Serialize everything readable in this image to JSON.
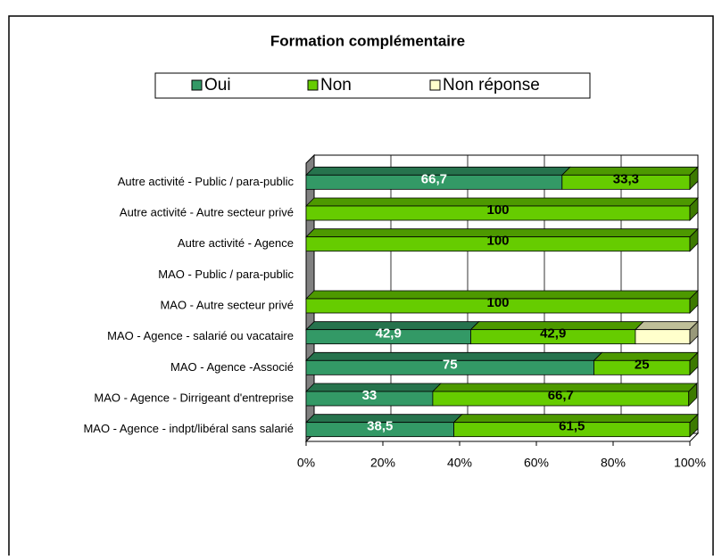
{
  "chart_data": {
    "type": "stacked-bar-horizontal-100",
    "title": "Formation complémentaire",
    "categories": [
      "Autre activité - Public / para-public",
      "Autre activité - Autre secteur privé",
      "Autre activité - Agence",
      "MAO - Public / para-public",
      "MAO - Autre secteur privé",
      "MAO - Agence - salarié ou vacataire",
      "MAO - Agence -Associé",
      "MAO - Agence - Dirrigeant d'entreprise",
      "MAO - Agence - indpt/libéral sans salarié"
    ],
    "series": [
      {
        "name": "Oui",
        "color": "#339966",
        "values": [
          66.7,
          0,
          0,
          null,
          0,
          42.9,
          75,
          33,
          38.5
        ],
        "value_labels": [
          "66,7",
          null,
          null,
          null,
          null,
          "42,9",
          "75",
          "33",
          "38,5"
        ]
      },
      {
        "name": "Non",
        "color": "#66cc00",
        "values": [
          33.3,
          100,
          100,
          null,
          100,
          42.9,
          25,
          66.7,
          61.5
        ],
        "value_labels": [
          "33,3",
          "100",
          "100",
          null,
          "100",
          "42,9",
          "25",
          "66,7",
          "61,5"
        ]
      },
      {
        "name": "Non réponse",
        "color": "#ffffcc",
        "values": [
          0,
          0,
          0,
          null,
          0,
          14.2,
          0,
          0,
          0
        ],
        "value_labels": [
          null,
          null,
          null,
          null,
          null,
          null,
          null,
          null,
          null
        ]
      }
    ],
    "xlim": [
      0,
      100
    ],
    "xticks": [
      {
        "value": 0,
        "label": "0%"
      },
      {
        "value": 20,
        "label": "20%"
      },
      {
        "value": 40,
        "label": "40%"
      },
      {
        "value": 60,
        "label": "60%"
      },
      {
        "value": 80,
        "label": "80%"
      },
      {
        "value": 100,
        "label": "100%"
      }
    ],
    "grid": true,
    "legend": "top"
  }
}
